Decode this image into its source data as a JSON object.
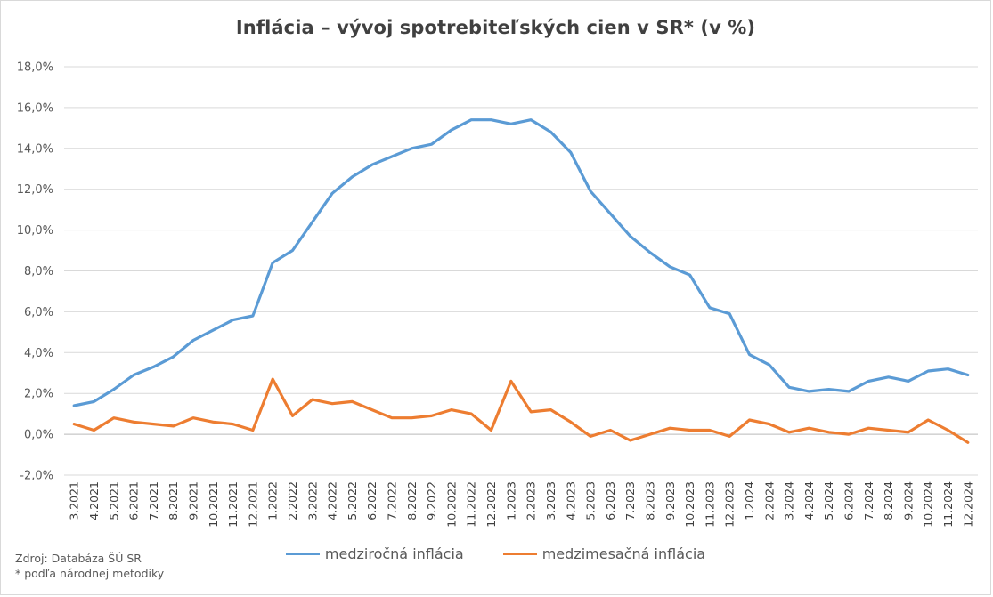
{
  "chart_data": {
    "type": "line",
    "title": "Inflácia –  vývoj spotrebiteľských cien v SR* (v %)",
    "ylim": [
      -2,
      18
    ],
    "yticks": [
      "-2,0%",
      "0,0%",
      "2,0%",
      "4,0%",
      "6,0%",
      "8,0%",
      "10,0%",
      "12,0%",
      "14,0%",
      "16,0%",
      "18,0%"
    ],
    "ytick_values": [
      -2,
      0,
      2,
      4,
      6,
      8,
      10,
      12,
      14,
      16,
      18
    ],
    "grid": true,
    "legend_position": "bottom",
    "categories": [
      "3.2021",
      "4.2021",
      "5.2021",
      "6.2021",
      "7.2021",
      "8.2021",
      "9.2021",
      "10.2021",
      "11.2021",
      "12.2021",
      "1.2022",
      "2.2022",
      "3.2022",
      "4.2022",
      "5.2022",
      "6.2022",
      "7.2022",
      "8.2022",
      "9.2022",
      "10.2022",
      "11.2022",
      "12.2022",
      "1.2023",
      "2.2023",
      "3.2023",
      "4.2023",
      "5.2023",
      "6.2023",
      "7.2023",
      "8.2023",
      "9.2023",
      "10.2023",
      "11.2023",
      "12.2023",
      "1.2024",
      "2.2024",
      "3.2024",
      "4.2024",
      "5.2024",
      "6.2024",
      "7.2024",
      "8.2024",
      "9.2024",
      "10.2024",
      "11.2024",
      "12.2024"
    ],
    "series": [
      {
        "name": "medziročná inflácia",
        "color": "#5b9bd5",
        "values": [
          1.4,
          1.6,
          2.2,
          2.9,
          3.3,
          3.8,
          4.6,
          5.1,
          5.6,
          5.8,
          8.4,
          9.0,
          10.4,
          11.8,
          12.6,
          13.2,
          13.6,
          14.0,
          14.2,
          14.9,
          15.4,
          15.4,
          15.2,
          15.4,
          14.8,
          13.8,
          11.9,
          10.8,
          9.7,
          8.9,
          8.2,
          7.8,
          6.2,
          5.9,
          3.9,
          3.4,
          2.3,
          2.1,
          2.2,
          2.1,
          2.6,
          2.8,
          2.6,
          3.1,
          3.2,
          2.9
        ]
      },
      {
        "name": "medzimesačná inflácia",
        "color": "#ed7d31",
        "values": [
          0.5,
          0.2,
          0.8,
          0.6,
          0.5,
          0.4,
          0.8,
          0.6,
          0.5,
          0.2,
          2.7,
          0.9,
          1.7,
          1.5,
          1.6,
          1.2,
          0.8,
          0.8,
          0.9,
          1.2,
          1.0,
          0.2,
          2.6,
          1.1,
          1.2,
          0.6,
          -0.1,
          0.2,
          -0.3,
          0.0,
          0.3,
          0.2,
          0.2,
          -0.1,
          0.7,
          0.5,
          0.1,
          0.3,
          0.1,
          0.0,
          0.3,
          0.2,
          0.1,
          0.7,
          0.2,
          -0.4
        ]
      }
    ]
  },
  "source_line1": "Zdroj: Databáza ŠÚ SR",
  "source_line2": "* podľa národnej metodiky"
}
